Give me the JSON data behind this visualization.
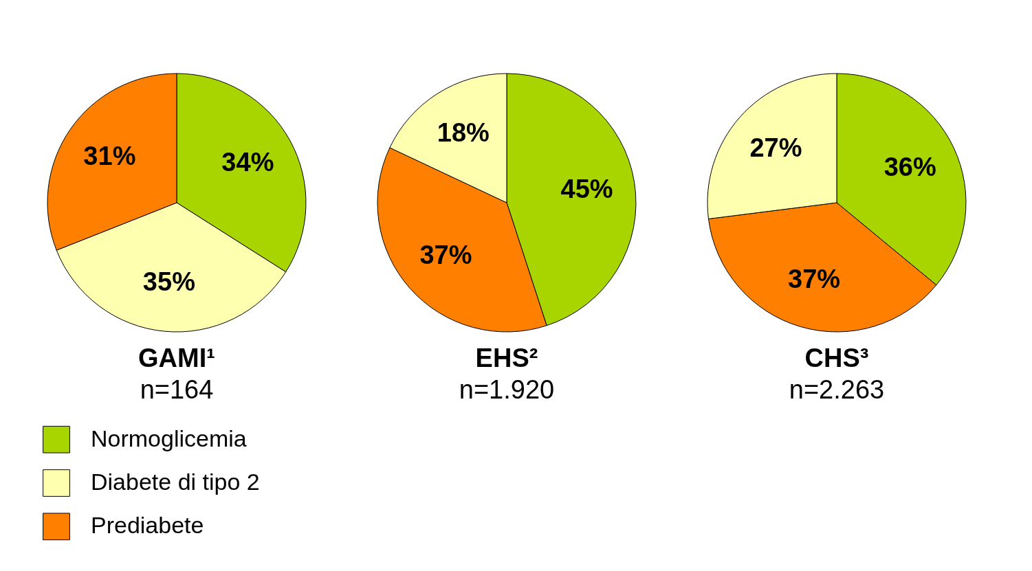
{
  "chart_data": [
    {
      "type": "pie",
      "title": "GAMI¹",
      "subtitle": "n=164",
      "categories": [
        "Normoglicemia",
        "Diabete di tipo 2",
        "Prediabete"
      ],
      "values": [
        34,
        35,
        31
      ],
      "colors": [
        "#a8d400",
        "#ffffb0",
        "#ff7f00"
      ],
      "value_labels": [
        "34%",
        "35%",
        "31%"
      ],
      "legend": "bottom"
    },
    {
      "type": "pie",
      "title": "EHS²",
      "subtitle": "n=1.920",
      "categories": [
        null,
        null,
        null
      ],
      "values": [
        45,
        37,
        18
      ],
      "colors": [
        "#a8d400",
        "#ff7f00",
        "#ffffb0"
      ],
      "value_labels": [
        "45%",
        "37%",
        "18%"
      ]
    },
    {
      "type": "pie",
      "title": "CHS³",
      "subtitle": "n=2.263",
      "categories": [
        null,
        null,
        null
      ],
      "values": [
        36,
        37,
        27
      ],
      "colors": [
        "#a8d400",
        "#ff7f00",
        "#ffffb0"
      ],
      "value_labels": [
        "36%",
        "37%",
        "27%"
      ]
    }
  ]
}
